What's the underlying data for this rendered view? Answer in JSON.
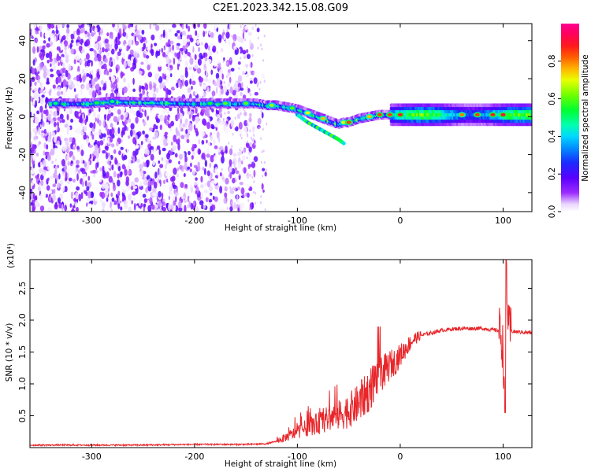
{
  "figure_title": "C2E1.2023.342.15.08.G09",
  "chart_data": [
    {
      "type": "heatmap",
      "xlabel": "Height of straight line (km)",
      "ylabel": "Frequency (Hz)",
      "xlim": [
        -360,
        128
      ],
      "ylim": [
        -50,
        49
      ],
      "xticks": [
        -300,
        -200,
        -100,
        0,
        100
      ],
      "xtick_labels": [
        "-300",
        "-200",
        "-100",
        "0",
        "100"
      ],
      "yticks": [
        -40,
        -20,
        0,
        20,
        40
      ],
      "ytick_labels": [
        "-40",
        "-20",
        "0",
        "20",
        "40"
      ],
      "colorbar": {
        "label": "Normalized spectral amplitude",
        "range": [
          0.0,
          1.0
        ],
        "ticks": [
          0.0,
          0.2,
          0.4,
          0.6,
          0.8
        ],
        "tick_labels": [
          "0.0",
          "0.2",
          "0.4",
          "0.6",
          "0.8"
        ],
        "colormap": "white-purple-blue-cyan-green-yellow-red-magenta"
      },
      "dominant_frequency_trace": {
        "x": [
          -335,
          -300,
          -280,
          -200,
          -180,
          -160,
          -140,
          -130,
          -120,
          -110,
          -100,
          -90,
          -80,
          -70,
          -60,
          -55,
          -50,
          -45,
          -40,
          -30,
          -20,
          -10,
          0,
          20,
          40,
          60,
          80,
          95,
          110,
          128
        ],
        "y": [
          7,
          7,
          8,
          7,
          7,
          7,
          7,
          6,
          6,
          5,
          4,
          2,
          0,
          -2,
          -4,
          -3,
          -3,
          -2,
          -1,
          0,
          1,
          1,
          1,
          1,
          1,
          1,
          1,
          1,
          1,
          1
        ]
      },
      "secondary_trace": {
        "x": [
          -100,
          -90,
          -80,
          -70,
          -60,
          -55
        ],
        "y": [
          1,
          -3,
          -6,
          -9,
          -12,
          -14
        ]
      }
    },
    {
      "type": "line",
      "xlabel": "Height of straight line (km)",
      "ylabel": "SNR (10 * v/v)",
      "scale_label": "(x10⁴)",
      "xlim": [
        -360,
        128
      ],
      "ylim": [
        0,
        2.95
      ],
      "xticks": [
        -300,
        -200,
        -100,
        0,
        100
      ],
      "xtick_labels": [
        "-300",
        "-200",
        "-100",
        "0",
        "100"
      ],
      "yticks": [
        0.5,
        1.0,
        1.5,
        2.0,
        2.5
      ],
      "ytick_labels": [
        "0.5",
        "1.0",
        "1.5",
        "2.0",
        "2.5"
      ],
      "series": [
        {
          "color": "#e8262a",
          "x": [
            -360,
            -300,
            -250,
            -200,
            -180,
            -150,
            -130,
            -120,
            -110,
            -100,
            -90,
            -80,
            -70,
            -60,
            -50,
            -40,
            -30,
            -25,
            -20,
            -15,
            -10,
            -5,
            0,
            5,
            10,
            15,
            20,
            25,
            30,
            40,
            50,
            60,
            70,
            80,
            90,
            98,
            100,
            102,
            103,
            105,
            110,
            120,
            128
          ],
          "y": [
            0.04,
            0.04,
            0.04,
            0.05,
            0.05,
            0.05,
            0.06,
            0.1,
            0.17,
            0.25,
            0.32,
            0.38,
            0.45,
            0.5,
            0.58,
            0.7,
            0.9,
            1.05,
            1.15,
            1.2,
            1.3,
            1.35,
            1.45,
            1.55,
            1.65,
            1.72,
            1.76,
            1.78,
            1.8,
            1.84,
            1.86,
            1.87,
            1.87,
            1.87,
            1.85,
            1.83,
            1.5,
            0.6,
            2.95,
            1.85,
            1.82,
            1.81,
            1.8
          ]
        }
      ]
    }
  ]
}
